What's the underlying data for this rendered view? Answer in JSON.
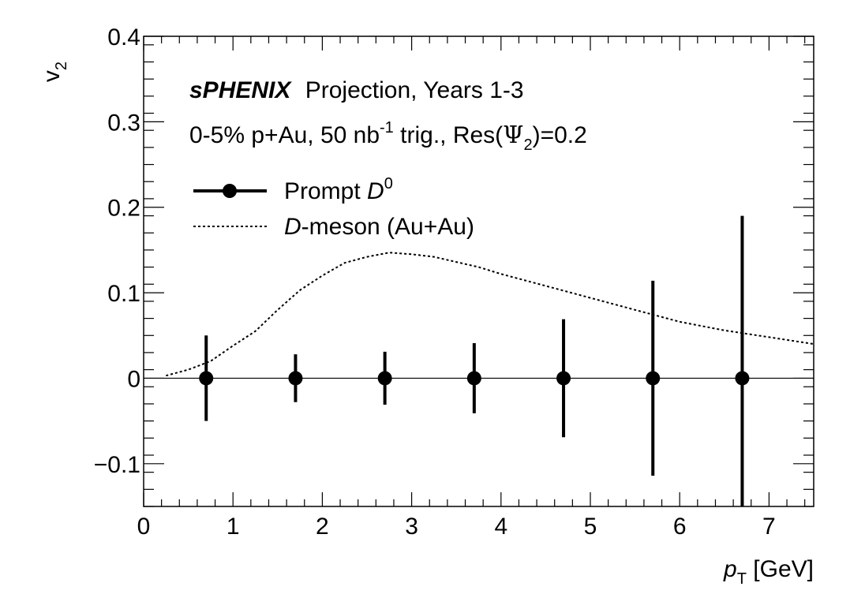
{
  "chart_data": {
    "type": "scatter",
    "header": {
      "brand": "sPHENIX",
      "projection": "Projection, Years 1-3",
      "condition_prefix": "0-5% p+Au, 50 nb",
      "condition_sup": "-1",
      "condition_mid": " trig., Res(",
      "condition_psi": "Ψ",
      "condition_sub": "2",
      "condition_suffix": ")=0.2"
    },
    "xlabel": {
      "main": "p",
      "sub": "T",
      "unit": " [GeV]"
    },
    "ylabel": {
      "main": "v",
      "sub": "2"
    },
    "xlim": [
      0,
      7.5
    ],
    "ylim": [
      -0.15,
      0.4
    ],
    "xticks": [
      0,
      1,
      2,
      3,
      4,
      5,
      6,
      7
    ],
    "xtick_labels": [
      "0",
      "1",
      "2",
      "3",
      "4",
      "5",
      "6",
      "7"
    ],
    "yticks": [
      -0.1,
      0,
      0.1,
      0.2,
      0.3,
      0.4
    ],
    "ytick_labels": [
      "−0.1",
      "0",
      "0.1",
      "0.2",
      "0.3",
      "0.4"
    ],
    "zero_line": 0,
    "series": [
      {
        "name": "Prompt D0",
        "legend_prefix": "Prompt ",
        "legend_symbol": "D",
        "legend_sup": "0",
        "style": "markers-errorbars",
        "x": [
          0.7,
          1.7,
          2.7,
          3.7,
          4.7,
          5.7,
          6.7
        ],
        "y": [
          0,
          0,
          0,
          0,
          0,
          0,
          0
        ],
        "yerr": [
          0.05,
          0.028,
          0.031,
          0.041,
          0.069,
          0.114,
          0.19
        ]
      },
      {
        "name": "D-meson (Au+Au)",
        "legend_symbol": "D",
        "legend_suffix": "-meson (Au+Au)",
        "style": "dotted-line",
        "x": [
          0.25,
          0.5,
          0.75,
          1.0,
          1.25,
          1.5,
          1.75,
          2.0,
          2.25,
          2.5,
          2.75,
          3.0,
          3.25,
          3.5,
          3.75,
          4.0,
          4.5,
          5.0,
          5.5,
          6.0,
          6.5,
          7.0,
          7.5
        ],
        "y": [
          0.003,
          0.01,
          0.02,
          0.038,
          0.055,
          0.08,
          0.103,
          0.12,
          0.135,
          0.142,
          0.147,
          0.145,
          0.142,
          0.136,
          0.13,
          0.122,
          0.108,
          0.094,
          0.08,
          0.066,
          0.056,
          0.048,
          0.04
        ]
      }
    ]
  }
}
